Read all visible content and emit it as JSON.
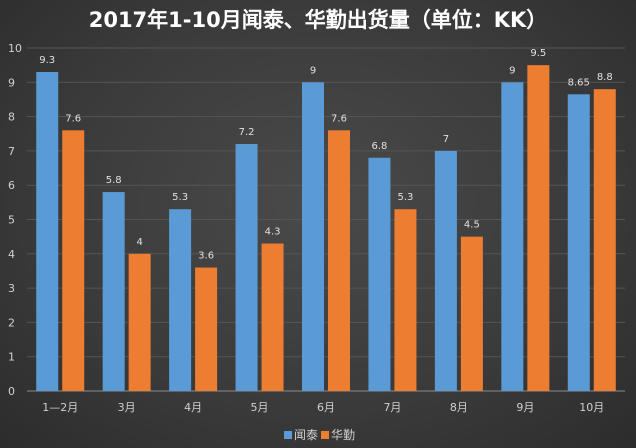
{
  "chart_data": {
    "type": "bar",
    "title": "2017年1-10月闻泰、华勤出货量（单位：KK）",
    "categories": [
      "1—2月",
      "3月",
      "4月",
      "5月",
      "6月",
      "7月",
      "8月",
      "9月",
      "10月"
    ],
    "series": [
      {
        "name": "闻泰",
        "color": "#5b9bd5",
        "values": [
          9.3,
          5.8,
          5.3,
          7.2,
          9,
          6.8,
          7,
          9,
          8.65
        ]
      },
      {
        "name": "华勤",
        "color": "#ed7d31",
        "values": [
          7.6,
          4,
          3.6,
          4.3,
          7.6,
          5.3,
          4.5,
          9.5,
          8.8
        ]
      }
    ],
    "ylim": [
      0,
      10
    ],
    "yticks": [
      0,
      1,
      2,
      3,
      4,
      5,
      6,
      7,
      8,
      9,
      10
    ],
    "grid": true,
    "legend": "bottom",
    "data_labels": true
  }
}
